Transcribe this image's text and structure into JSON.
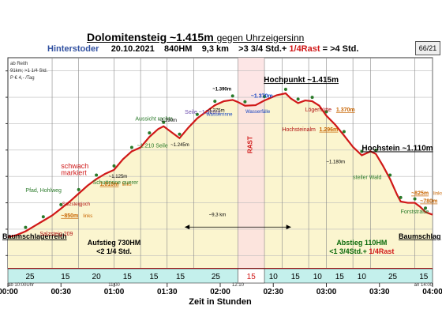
{
  "header": {
    "title": "Dolomitensteig ~1.415m",
    "title_suffix": "gegen Uhrzeigersinn",
    "place": "Hinterstoder",
    "date": "20.10.2021",
    "hm": "840HM",
    "km": "9,3 km",
    "time_a": ">3 3/4 Std.+",
    "time_rast": "1/4Rast",
    "time_b": "= >4 Std.",
    "page": "66/21"
  },
  "legend_notes": [
    "ab Reith",
    "91km; >1 1/4 Std.",
    "P € 4,- /Tag"
  ],
  "colors": {
    "fill": "#fbf5cf",
    "profile": "#d01818",
    "rast_fill": "#fde0e0",
    "duration_bar": "#c4f0ec"
  },
  "chart_data": {
    "type": "area",
    "xlabel": "Zeit in Stunden",
    "x_ticks": [
      "00:00",
      "00:30",
      "01:00",
      "01:30",
      "02:00",
      "02:30",
      "03:00",
      "03:30",
      "04:00"
    ],
    "x_minor": [
      {
        "x": 0,
        "label": "ab 10:00Uhr"
      },
      {
        "x": 60,
        "label": "11:00"
      },
      {
        "x": 130,
        "label": "12:10"
      },
      {
        "x": 240,
        "label": "an 14:00"
      }
    ],
    "xlim": [
      0,
      240
    ],
    "ylim": [
      750,
      1550
    ],
    "y_ticks": [
      800,
      900,
      1000,
      1100,
      1200,
      1300,
      1400,
      1500
    ],
    "profile": [
      [
        0,
        870
      ],
      [
        5,
        878
      ],
      [
        10,
        892
      ],
      [
        15,
        912
      ],
      [
        20,
        932
      ],
      [
        25,
        952
      ],
      [
        30,
        978
      ],
      [
        35,
        1005
      ],
      [
        40,
        1035
      ],
      [
        45,
        1065
      ],
      [
        50,
        1090
      ],
      [
        55,
        1110
      ],
      [
        60,
        1125
      ],
      [
        65,
        1165
      ],
      [
        70,
        1195
      ],
      [
        75,
        1210
      ],
      [
        80,
        1250
      ],
      [
        85,
        1280
      ],
      [
        88,
        1290
      ],
      [
        93,
        1265
      ],
      [
        97,
        1245
      ],
      [
        102,
        1285
      ],
      [
        107,
        1320
      ],
      [
        112,
        1345
      ],
      [
        117,
        1370
      ],
      [
        122,
        1385
      ],
      [
        127,
        1390
      ],
      [
        130,
        1382
      ],
      [
        134,
        1368
      ],
      [
        140,
        1370
      ],
      [
        145,
        1388
      ],
      [
        152,
        1408
      ],
      [
        157,
        1415
      ],
      [
        160,
        1395
      ],
      [
        164,
        1378
      ],
      [
        168,
        1388
      ],
      [
        172,
        1385
      ],
      [
        176,
        1368
      ],
      [
        180,
        1330
      ],
      [
        185,
        1296
      ],
      [
        190,
        1255
      ],
      [
        195,
        1212
      ],
      [
        200,
        1180
      ],
      [
        205,
        1195
      ],
      [
        208,
        1185
      ],
      [
        212,
        1140
      ],
      [
        216,
        1090
      ],
      [
        220,
        1030
      ],
      [
        222,
        1005
      ],
      [
        226,
        1000
      ],
      [
        230,
        1000
      ],
      [
        233,
        985
      ],
      [
        236,
        965
      ],
      [
        240,
        955
      ]
    ],
    "rast_band": [
      130,
      145
    ],
    "segments": [
      {
        "x0": 0,
        "x1": 25,
        "label": "25"
      },
      {
        "x0": 25,
        "x1": 40,
        "label": "15"
      },
      {
        "x0": 40,
        "x1": 60,
        "label": "20"
      },
      {
        "x0": 60,
        "x1": 75,
        "label": "15"
      },
      {
        "x0": 75,
        "x1": 90,
        "label": "15"
      },
      {
        "x0": 90,
        "x1": 105,
        "label": "15"
      },
      {
        "x0": 105,
        "x1": 130,
        "label": "25"
      },
      {
        "x0": 130,
        "x1": 145,
        "label": "15",
        "rast": true
      },
      {
        "x0": 145,
        "x1": 155,
        "label": "10"
      },
      {
        "x0": 155,
        "x1": 170,
        "label": "15"
      },
      {
        "x0": 170,
        "x1": 180,
        "label": "10"
      },
      {
        "x0": 180,
        "x1": 195,
        "label": "15"
      },
      {
        "x0": 195,
        "x1": 205,
        "label": "10"
      },
      {
        "x0": 205,
        "x1": 230,
        "label": "25"
      },
      {
        "x0": 230,
        "x1": 240,
        "label": "15"
      }
    ],
    "annotations": [
      {
        "x": 0,
        "y": 900,
        "text": "Baumschlagerreith",
        "cls": "big"
      },
      {
        "x": 18,
        "y": 912,
        "text": "Salzsteig 209",
        "cls": "red"
      },
      {
        "x": 30,
        "y": 945,
        "text": "~850m",
        "cls": "orange"
      },
      {
        "x": 30,
        "y": 945,
        "text": "links",
        "cls": "small-orange"
      },
      {
        "x": 28,
        "y": 990,
        "text": "Salzsteigjoch",
        "cls": "tiny-red"
      },
      {
        "x": 10,
        "y": 1040,
        "text": "Pfad, Hohlweg",
        "cls": "green"
      },
      {
        "x": 30,
        "y": 1130,
        "text": "schwach",
        "cls": "red-big"
      },
      {
        "x": 30,
        "y": 1105,
        "text": "markiert",
        "cls": "red-big"
      },
      {
        "x": 52,
        "y": 1065,
        "text": "1.010m",
        "cls": "orange"
      },
      {
        "x": 52,
        "y": 1065,
        "text": "links",
        "cls": "small-orange"
      },
      {
        "x": 48,
        "y": 1100,
        "text": "Schuttrinne querer",
        "cls": "green"
      },
      {
        "x": 57,
        "y": 1125,
        "text": "~1.125m",
        "cls": "tiny"
      },
      {
        "x": 73,
        "y": 1210,
        "text": "~1.210 Seile",
        "cls": "green"
      },
      {
        "x": 72,
        "y": 1300,
        "text": "Aussicht rechts",
        "cls": "green"
      },
      {
        "x": 85,
        "y": 1290,
        "text": "~1.290m",
        "cls": "tiny"
      },
      {
        "x": 92,
        "y": 1245,
        "text": "~1.245m",
        "cls": "tiny"
      },
      {
        "x": 100,
        "y": 1320,
        "text": "Seile ~1.320m",
        "cls": "violet"
      },
      {
        "x": 112,
        "y": 1345,
        "text": "~1.375m",
        "cls": "tiny"
      },
      {
        "x": 112,
        "y": 1330,
        "text": "Wasserrinne",
        "cls": "tiny-blue"
      },
      {
        "x": 121,
        "y": 1390,
        "text": "~1.390m",
        "cls": "bold-tiny"
      },
      {
        "x": 140,
        "y": 1375,
        "text": "~1.370m",
        "cls": "blue"
      },
      {
        "x": 137,
        "y": 1340,
        "text": "Wasserfälle",
        "cls": "tiny-blue"
      },
      {
        "x": 150,
        "y": 1415,
        "text": "Hochpunkt ~1.415m",
        "cls": "big-u"
      },
      {
        "x": 168,
        "y": 1370,
        "text": "Lögerhütte",
        "cls": "red"
      },
      {
        "x": 190,
        "y": 1370,
        "text": "1.370m",
        "cls": "orange"
      },
      {
        "x": 155,
        "y": 1296,
        "text": "Hochsteinalm",
        "cls": "red"
      },
      {
        "x": 176,
        "y": 1296,
        "text": "1.296m",
        "cls": "orange"
      },
      {
        "x": 200,
        "y": 1210,
        "text": "Hochstein ~1.110m",
        "cls": "big-u"
      },
      {
        "x": 180,
        "y": 1180,
        "text": "~1.180m",
        "cls": "tiny"
      },
      {
        "x": 195,
        "y": 1090,
        "text": "steiler Wald",
        "cls": "green"
      },
      {
        "x": 228,
        "y": 1030,
        "text": "~825m",
        "cls": "orange"
      },
      {
        "x": 228,
        "y": 1030,
        "text": "links",
        "cls": "small-orange"
      },
      {
        "x": 233,
        "y": 1000,
        "text": "~780m",
        "cls": "orange"
      },
      {
        "x": 222,
        "y": 960,
        "text": "Forststraße",
        "cls": "green"
      },
      {
        "x": 240,
        "y": 900,
        "text": "Baumschlag",
        "cls": "big"
      },
      {
        "x": 119,
        "y": 950,
        "text": "~9,3 km",
        "cls": "tiny"
      },
      {
        "x": 138,
        "y": 1220,
        "text": "RAST",
        "cls": "rast"
      }
    ],
    "summaries": [
      {
        "x": 60,
        "lines": [
          "Aufstieg 730HM",
          "<2 1/4 Std."
        ]
      },
      {
        "x": 200,
        "lines": [
          "Abstieg 110HM",
          "<1 3/4Std.+ 1/4Rast"
        ]
      }
    ]
  }
}
